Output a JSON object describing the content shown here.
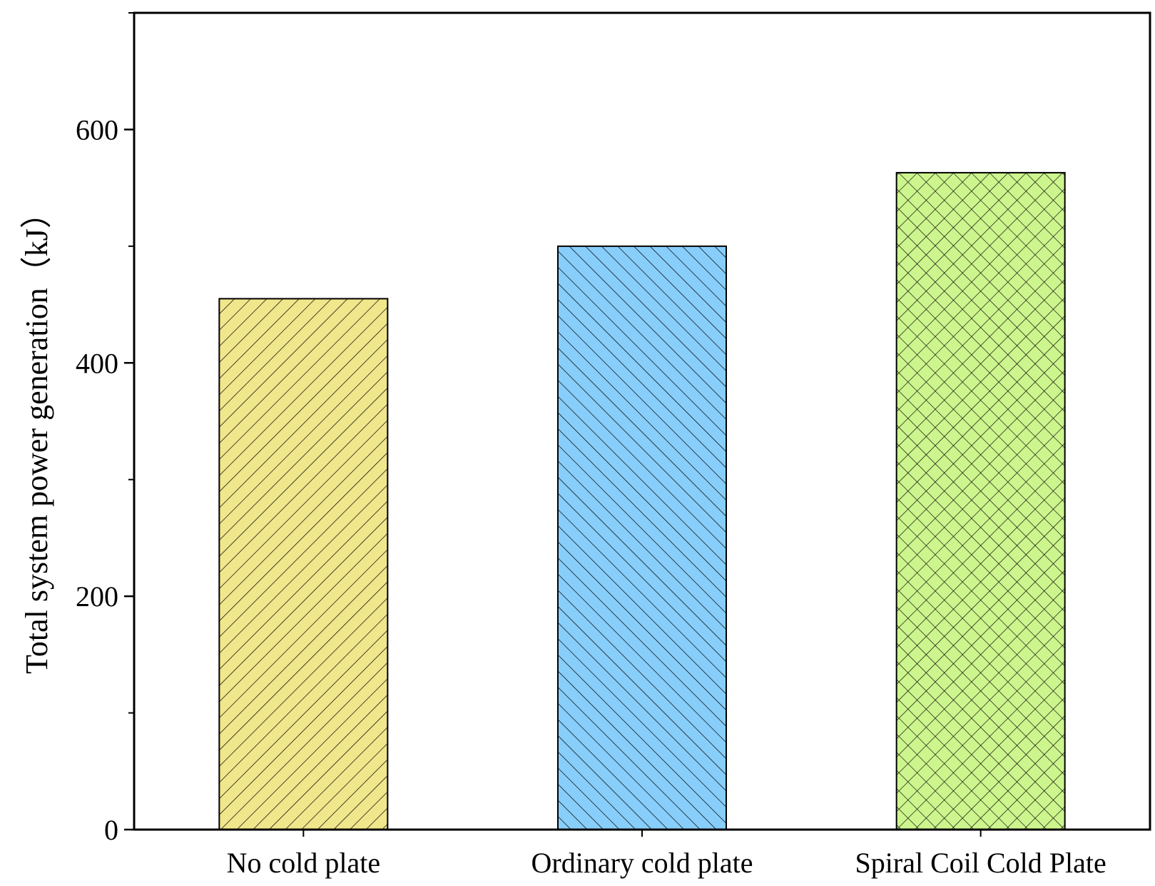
{
  "chart_data": {
    "type": "bar",
    "title": "",
    "xlabel": "",
    "ylabel": "Total system power generation（kJ）",
    "ylim": [
      0,
      700
    ],
    "yticks_major": [
      0,
      200,
      400,
      600
    ],
    "yticks_minor": [
      100,
      300,
      500,
      700
    ],
    "grid": false,
    "categories": [
      "No cold plate",
      "Ordinary cold plate",
      "Spiral Coil Cold Plate"
    ],
    "values": [
      455,
      500,
      563
    ],
    "colors": [
      "#f0e68c",
      "#87cefa",
      "#ccf58d"
    ],
    "patterns": [
      "forward-hatch",
      "back-hatch",
      "cross-hatch"
    ]
  }
}
